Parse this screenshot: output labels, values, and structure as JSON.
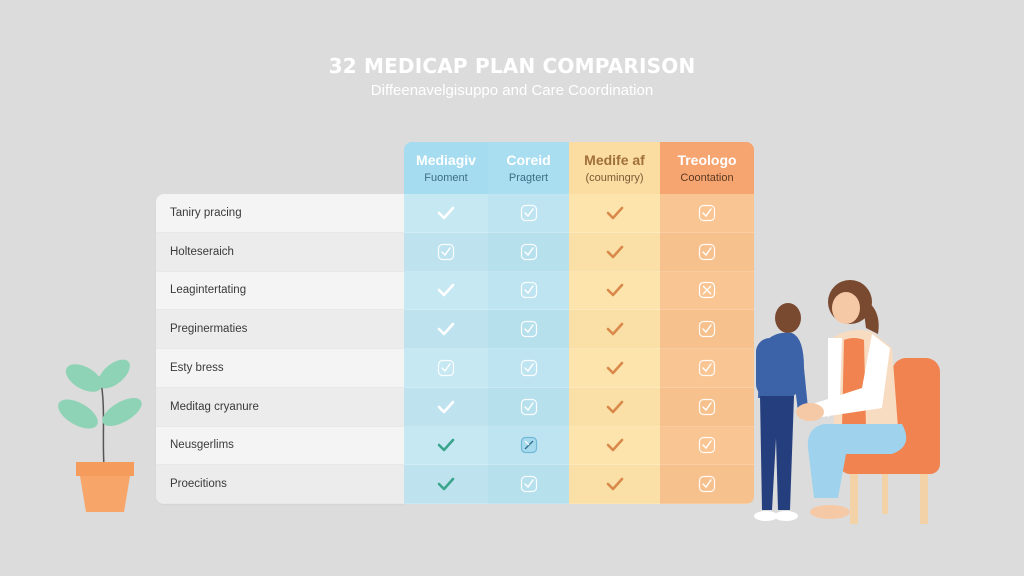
{
  "header": {
    "title": "32 MEDICAP PLAN COMPARISON",
    "subtitle": "Diffeenavelgisuppo and Care Coordination"
  },
  "columns": [
    {
      "title": "Mediagiv",
      "subtitle": "Fuoment",
      "color": "#a5dcf0",
      "icon_color": "#ffffff"
    },
    {
      "title": "Coreid",
      "subtitle": "Pragtert",
      "color": "#a9def1",
      "icon_color": "#ffffff"
    },
    {
      "title": "Medife af",
      "subtitle": "(coumingry)",
      "color": "#fbdca1",
      "icon_color": "#d9894a"
    },
    {
      "title": "Treologo",
      "subtitle": "Coontation",
      "color": "#f7a570",
      "icon_color": "#ffffff"
    }
  ],
  "features": [
    {
      "label": "Taniry pracing",
      "cells": [
        "check",
        "boxcheck",
        "check",
        "boxcheck"
      ]
    },
    {
      "label": "Holteseraich",
      "cells": [
        "boxcheck",
        "boxcheck",
        "check",
        "boxcheck"
      ]
    },
    {
      "label": "Leagintertating",
      "cells": [
        "check",
        "boxcheck",
        "check",
        "boxx"
      ]
    },
    {
      "label": "Preginermaties",
      "cells": [
        "check",
        "boxcheck",
        "check",
        "boxcheck"
      ]
    },
    {
      "label": "Esty bress",
      "cells": [
        "boxcheck",
        "boxcheck",
        "check",
        "boxcheck"
      ]
    },
    {
      "label": "Meditag cryanure",
      "cells": [
        "check",
        "boxcheck",
        "check",
        "boxcheck"
      ]
    },
    {
      "label": "Neusgerlims",
      "cells": [
        "check-teal",
        "boxx-blue",
        "check",
        "boxcheck"
      ]
    },
    {
      "label": "Proecitions",
      "cells": [
        "check-teal",
        "boxcheck",
        "check",
        "boxcheck"
      ]
    }
  ],
  "colors": {
    "background": "#dcdcdc",
    "teal_check": "#3aa58c",
    "orange_check": "#d9894a"
  }
}
